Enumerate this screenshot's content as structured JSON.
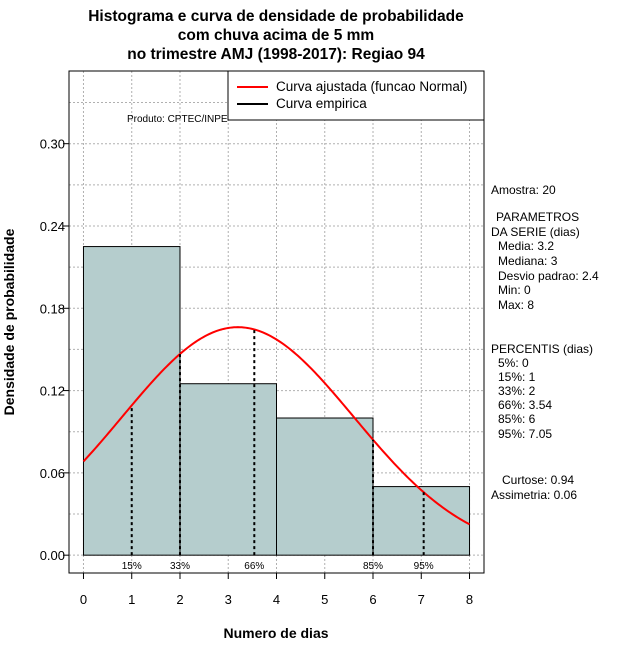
{
  "chart_data": {
    "type": "bar",
    "title_lines": [
      "Histograma e curva de densidade de probabilidade",
      "com chuva acima de 5 mm",
      "no trimestre AMJ (1998-2017): Regiao 94"
    ],
    "xlabel": "Numero de dias",
    "ylabel": "Densidade de probabilidade",
    "xlim": [
      -0.3,
      8.3
    ],
    "ylim": [
      -0.013,
      0.353
    ],
    "x_ticks": [
      "0",
      "1",
      "2",
      "3",
      "4",
      "5",
      "6",
      "7",
      "8"
    ],
    "y_ticks": [
      "0.00",
      "0.06",
      "0.12",
      "0.18",
      "0.24",
      "0.30"
    ],
    "grid": true,
    "bins": [
      {
        "x0": 0,
        "x1": 2,
        "density": 0.225
      },
      {
        "x0": 2,
        "x1": 4,
        "density": 0.125
      },
      {
        "x0": 4,
        "x1": 6,
        "density": 0.1
      },
      {
        "x0": 6,
        "x1": 8,
        "density": 0.05
      }
    ],
    "normal_fit": {
      "mean": 3.2,
      "sd": 2.4,
      "xrange": [
        0,
        8
      ]
    },
    "percentile_markers": [
      {
        "label": "15%",
        "x": 1
      },
      {
        "label": "33%",
        "x": 2
      },
      {
        "label": "66%",
        "x": 3.54
      },
      {
        "label": "85%",
        "x": 6
      },
      {
        "label": "95%",
        "x": 7.05
      }
    ],
    "legend": {
      "placement": "top-right",
      "entries": [
        {
          "label": "Curva ajustada (funcao Normal)",
          "color": "#ff0000"
        },
        {
          "label": "Curva empirica",
          "color": "#000000"
        }
      ]
    },
    "annotation": "Produto: CPTEC/INPE",
    "colors": {
      "bar_fill": "#b5cdcd",
      "curve": "#ff0000",
      "grid": "#b0b0b0"
    }
  },
  "side_panel": {
    "amostra": "Amostra: 20",
    "parametros_title1": "PARAMETROS",
    "parametros_title2": "DA SERIE (dias)",
    "media": "Media: 3.2",
    "mediana": "Mediana: 3",
    "desvio": "Desvio padrao: 2.4",
    "min": "Min: 0",
    "max": "Max: 8",
    "percentis_title": "PERCENTIS (dias)",
    "p5": "5%: 0",
    "p15": "15%: 1",
    "p33": "33%: 2",
    "p66": "66%: 3.54",
    "p85": "85%: 6",
    "p95": "95%: 7.05",
    "curtose": "Curtose: 0.94",
    "assimetria": "Assimetria: 0.06"
  }
}
